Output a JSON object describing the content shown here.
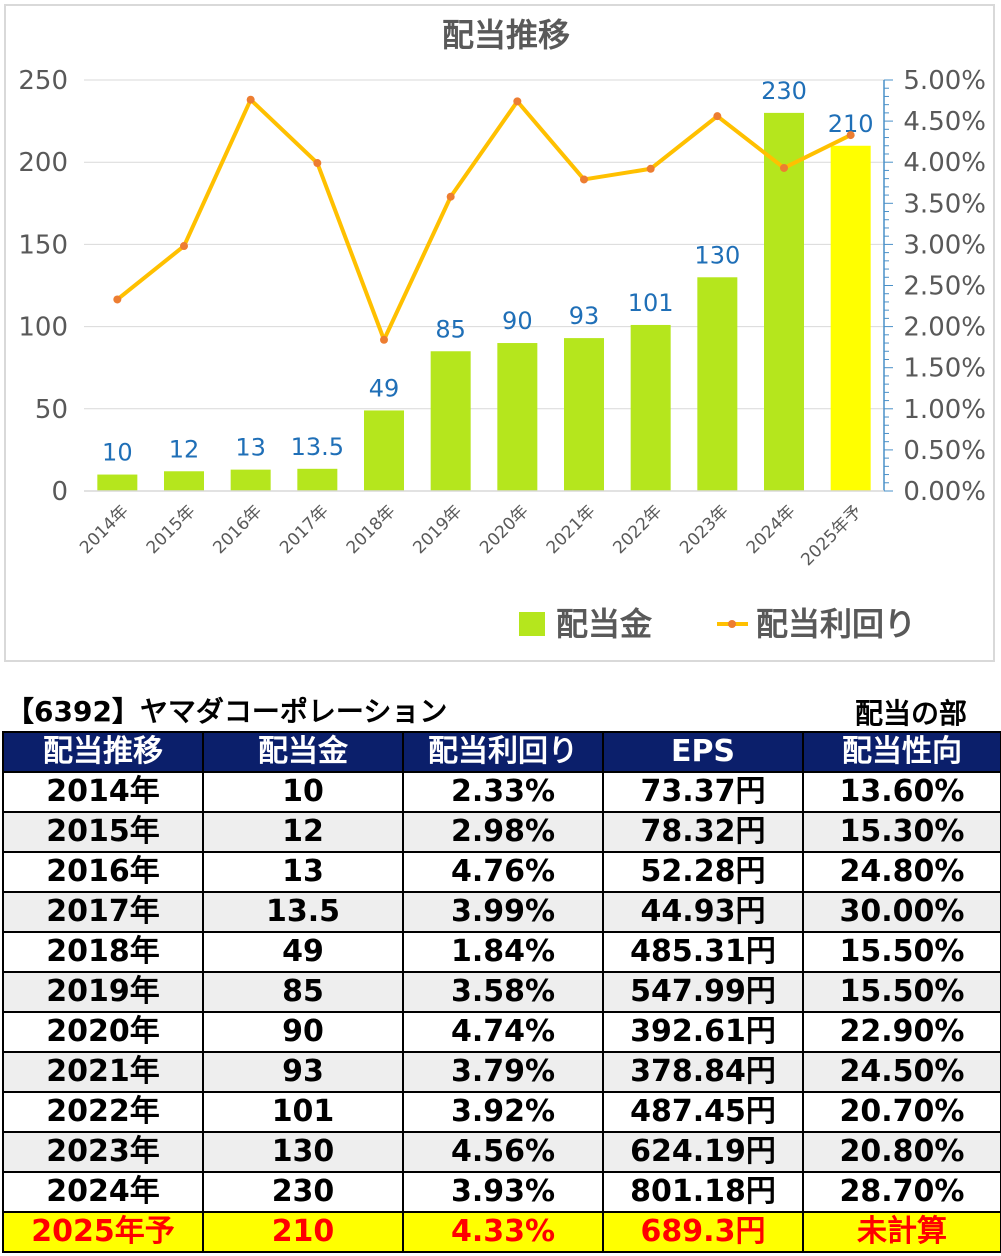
{
  "chart_data": {
    "type": "bar",
    "title": "配当推移",
    "categories": [
      "2014年",
      "2015年",
      "2016年",
      "2017年",
      "2018年",
      "2019年",
      "2020年",
      "2021年",
      "2022年",
      "2023年",
      "2024年",
      "2025年予"
    ],
    "y_left": {
      "ylim": [
        0,
        250
      ],
      "ticks": [
        "0",
        "50",
        "100",
        "150",
        "200",
        "250"
      ]
    },
    "y_right": {
      "ylim": [
        0,
        5.0
      ],
      "ticks": [
        "0.00%",
        "0.50%",
        "1.00%",
        "1.50%",
        "2.00%",
        "2.50%",
        "3.00%",
        "3.50%",
        "4.00%",
        "4.50%",
        "5.00%"
      ]
    },
    "series": [
      {
        "name": "配当金",
        "type": "bar",
        "axis": "left",
        "values": [
          10,
          12,
          13,
          13.5,
          49,
          85,
          90,
          93,
          101,
          130,
          230,
          210
        ],
        "labels": [
          "10",
          "12",
          "13",
          "13.5",
          "49",
          "85",
          "90",
          "93",
          "101",
          "130",
          "230",
          "210"
        ],
        "color": "#b5e61d",
        "forecast_color": "#ffff00"
      },
      {
        "name": "配当利回り",
        "type": "line",
        "axis": "right",
        "values": [
          2.33,
          2.98,
          4.76,
          3.99,
          1.84,
          3.58,
          4.74,
          3.79,
          3.92,
          4.56,
          3.93,
          4.33
        ],
        "color": "#ffc000",
        "marker_color": "#ed7d31"
      }
    ],
    "label_color": "#1f6fb7",
    "grid": true,
    "legend": "bottom-right"
  },
  "header": {
    "company": "【6392】ヤマダコーポレーション",
    "section": "配当の部"
  },
  "table": {
    "columns": [
      "配当推移",
      "配当金",
      "配当利回り",
      "EPS",
      "配当性向"
    ],
    "rows": [
      [
        "2014年",
        "10",
        "2.33%",
        "73.37円",
        "13.60%"
      ],
      [
        "2015年",
        "12",
        "2.98%",
        "78.32円",
        "15.30%"
      ],
      [
        "2016年",
        "13",
        "4.76%",
        "52.28円",
        "24.80%"
      ],
      [
        "2017年",
        "13.5",
        "3.99%",
        "44.93円",
        "30.00%"
      ],
      [
        "2018年",
        "49",
        "1.84%",
        "485.31円",
        "15.50%"
      ],
      [
        "2019年",
        "85",
        "3.58%",
        "547.99円",
        "15.50%"
      ],
      [
        "2020年",
        "90",
        "4.74%",
        "392.61円",
        "22.90%"
      ],
      [
        "2021年",
        "93",
        "3.79%",
        "378.84円",
        "24.50%"
      ],
      [
        "2022年",
        "101",
        "3.92%",
        "487.45円",
        "20.70%"
      ],
      [
        "2023年",
        "130",
        "4.56%",
        "624.19円",
        "20.80%"
      ],
      [
        "2024年",
        "230",
        "3.93%",
        "801.18円",
        "28.70%"
      ]
    ],
    "forecast_row": [
      "2025年予",
      "210",
      "4.33%",
      "689.3円",
      "未計算"
    ]
  }
}
